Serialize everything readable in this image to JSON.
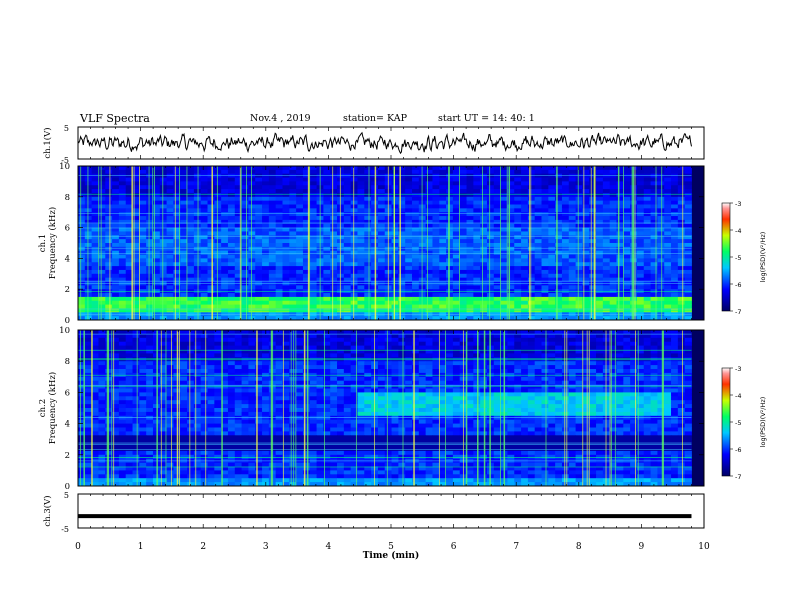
{
  "header": {
    "title": "VLF Spectra",
    "date": "Nov.4 , 2019",
    "station": "station= KAP",
    "start_ut": "start UT = 14: 40: 1"
  },
  "colors": {
    "spectrum_low": "#000050",
    "spectrum_mid": "#00c8ff",
    "spectrum_high": "#ff0000",
    "trace": "#000000"
  },
  "chart_data": [
    {
      "type": "line",
      "panel": "ch1-waveform",
      "ylabel": "ch.1(V)",
      "ylim": [
        -5,
        5
      ],
      "ytick_labels": [
        "5",
        "-5"
      ],
      "xlim": [
        0,
        10
      ],
      "x_extent": [
        0,
        9.8
      ],
      "description_values": "noisy waveform fluctuating roughly between -3 and +3 V"
    },
    {
      "type": "heatmap",
      "panel": "ch1-spectrogram",
      "ylabel": "ch.1\nFrequency (kHz)",
      "ylim": [
        0,
        10
      ],
      "ytick_labels": [
        "0",
        "2",
        "4",
        "6",
        "8",
        "10"
      ],
      "xlim": [
        0,
        10
      ],
      "x_extent": [
        0,
        9.8
      ],
      "bright_band_khz": [
        0.6,
        1.6
      ],
      "colorbar": {
        "ticks": [
          "-3",
          "-4",
          "-5",
          "-6",
          "-7"
        ],
        "range": [
          -7,
          -3
        ],
        "label": "log(PSD)(V²/Hz)"
      }
    },
    {
      "type": "heatmap",
      "panel": "ch2-spectrogram",
      "ylabel": "ch.2\nFrequency (kHz)",
      "ylim": [
        0,
        10
      ],
      "ytick_labels": [
        "0",
        "2",
        "4",
        "6",
        "8",
        "10"
      ],
      "xlim": [
        0,
        10
      ],
      "x_extent": [
        0,
        9.8
      ],
      "enhanced_band_khz": [
        4.5,
        6.0
      ],
      "enhanced_band_time_min": [
        4.5,
        9.5
      ],
      "colorbar": {
        "ticks": [
          "-3",
          "-4",
          "-5",
          "-6",
          "-7"
        ],
        "range": [
          -7,
          -3
        ],
        "label": "log(PSD)(V²/Hz)"
      }
    },
    {
      "type": "line",
      "panel": "ch3-waveform",
      "ylabel": "ch.3(V)",
      "ylim": [
        -5,
        5
      ],
      "ytick_labels": [
        "5",
        "-5"
      ],
      "xlim": [
        0,
        10
      ],
      "x_extent": [
        0,
        9.8
      ],
      "values_constant": -1.5
    }
  ],
  "xaxis": {
    "label": "Time (min)",
    "ticks": [
      "0",
      "1",
      "2",
      "3",
      "4",
      "5",
      "6",
      "7",
      "8",
      "9",
      "10"
    ]
  }
}
